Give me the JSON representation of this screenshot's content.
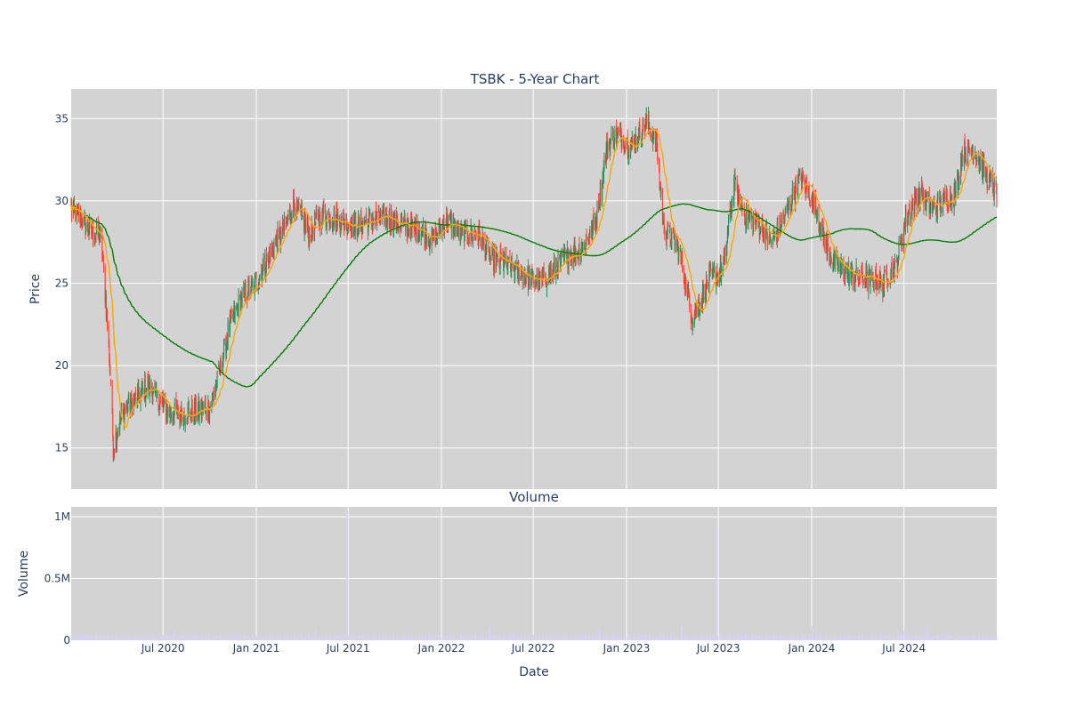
{
  "chart_data": {
    "type": "candlestick",
    "title": "TSBK - 5-Year Chart",
    "price_panel": {
      "ylabel": "Price",
      "yticks": [
        15,
        20,
        25,
        30,
        35
      ],
      "ylim": [
        12.5,
        36.8
      ],
      "xlim": [
        "2020-01-02",
        "2024-12-31"
      ],
      "grid": true,
      "background": "#d3d3d3",
      "up_color": "#2e8b57",
      "down_color": "#ff4136",
      "ma_short": {
        "color": "#ffa500"
      },
      "ma_long": {
        "color": "#008000"
      },
      "close_anchors": [
        [
          "2020-01-02",
          29.5
        ],
        [
          "2020-01-20",
          28.9
        ],
        [
          "2020-02-15",
          28.0
        ],
        [
          "2020-03-01",
          27.8
        ],
        [
          "2020-03-10",
          24.0
        ],
        [
          "2020-03-20",
          19.0
        ],
        [
          "2020-03-25",
          15.0
        ],
        [
          "2020-04-05",
          16.5
        ],
        [
          "2020-04-20",
          17.5
        ],
        [
          "2020-05-10",
          18.0
        ],
        [
          "2020-06-01",
          18.8
        ],
        [
          "2020-06-20",
          18.0
        ],
        [
          "2020-07-10",
          17.3
        ],
        [
          "2020-08-01",
          17.0
        ],
        [
          "2020-09-01",
          17.2
        ],
        [
          "2020-10-01",
          17.5
        ],
        [
          "2020-10-20",
          19.5
        ],
        [
          "2020-11-10",
          22.5
        ],
        [
          "2020-12-01",
          24.0
        ],
        [
          "2020-12-31",
          25.0
        ],
        [
          "2021-02-01",
          27.0
        ],
        [
          "2021-03-01",
          28.5
        ],
        [
          "2021-03-15",
          30.0
        ],
        [
          "2021-04-15",
          28.0
        ],
        [
          "2021-05-15",
          29.2
        ],
        [
          "2021-06-15",
          28.8
        ],
        [
          "2021-07-15",
          28.5
        ],
        [
          "2021-08-15",
          28.8
        ],
        [
          "2021-09-15",
          29.0
        ],
        [
          "2021-10-15",
          28.5
        ],
        [
          "2021-11-15",
          28.3
        ],
        [
          "2021-12-15",
          27.7
        ],
        [
          "2022-01-10",
          28.8
        ],
        [
          "2022-02-10",
          28.0
        ],
        [
          "2022-03-15",
          28.0
        ],
        [
          "2022-04-10",
          26.5
        ],
        [
          "2022-05-15",
          26.0
        ],
        [
          "2022-06-15",
          25.4
        ],
        [
          "2022-07-15",
          25.0
        ],
        [
          "2022-08-15",
          26.0
        ],
        [
          "2022-09-15",
          26.8
        ],
        [
          "2022-10-10",
          27.3
        ],
        [
          "2022-11-01",
          28.8
        ],
        [
          "2022-11-25",
          33.5
        ],
        [
          "2022-12-15",
          34.0
        ],
        [
          "2023-01-10",
          33.3
        ],
        [
          "2023-02-10",
          34.8
        ],
        [
          "2023-03-01",
          33.5
        ],
        [
          "2023-03-15",
          28.5
        ],
        [
          "2023-04-15",
          27.0
        ],
        [
          "2023-05-10",
          23.0
        ],
        [
          "2023-05-25",
          23.8
        ],
        [
          "2023-06-15",
          25.3
        ],
        [
          "2023-07-10",
          25.8
        ],
        [
          "2023-08-01",
          31.0
        ],
        [
          "2023-08-25",
          29.0
        ],
        [
          "2023-09-20",
          28.5
        ],
        [
          "2023-10-15",
          27.5
        ],
        [
          "2023-11-15",
          29.5
        ],
        [
          "2023-12-10",
          31.5
        ],
        [
          "2024-01-10",
          29.5
        ],
        [
          "2024-02-01",
          27.0
        ],
        [
          "2024-02-20",
          26.0
        ],
        [
          "2024-03-20",
          25.5
        ],
        [
          "2024-04-20",
          25.3
        ],
        [
          "2024-05-20",
          25.0
        ],
        [
          "2024-06-15",
          26.0
        ],
        [
          "2024-07-05",
          29.0
        ],
        [
          "2024-08-01",
          30.5
        ],
        [
          "2024-08-25",
          29.5
        ],
        [
          "2024-09-20",
          30.0
        ],
        [
          "2024-10-10",
          30.5
        ],
        [
          "2024-10-25",
          33.0
        ],
        [
          "2024-11-20",
          33.0
        ],
        [
          "2024-12-10",
          31.5
        ],
        [
          "2024-12-31",
          30.5
        ]
      ]
    },
    "volume_panel": {
      "title": "Volume",
      "ylabel": "Volume",
      "yticks": [
        0,
        500000,
        1000000
      ],
      "ytick_labels": [
        "0",
        "0.5M",
        "1M"
      ],
      "ylim": [
        0,
        1080000.0
      ],
      "bar_color": "#d7d2f0",
      "typical_volume": 40000,
      "spikes": [
        [
          "2020-07-22",
          80000
        ],
        [
          "2021-04-28",
          90000
        ],
        [
          "2021-06-29",
          1050000
        ],
        [
          "2022-04-06",
          100000
        ],
        [
          "2022-11-08",
          90000
        ],
        [
          "2023-04-20",
          120000
        ],
        [
          "2023-06-27",
          930000
        ],
        [
          "2024-01-02",
          110000
        ],
        [
          "2024-07-02",
          80000
        ],
        [
          "2024-08-15",
          120000
        ]
      ]
    },
    "xlabel": "Date",
    "xticks": [
      "2020-07-01",
      "2021-01-01",
      "2021-07-01",
      "2022-01-01",
      "2022-07-01",
      "2023-01-01",
      "2023-07-01",
      "2024-01-01",
      "2024-07-01"
    ],
    "xtick_labels": [
      "Jul 2020",
      "Jan 2021",
      "Jul 2021",
      "Jan 2022",
      "Jul 2022",
      "Jan 2023",
      "Jul 2023",
      "Jan 2024",
      "Jul 2024"
    ]
  }
}
